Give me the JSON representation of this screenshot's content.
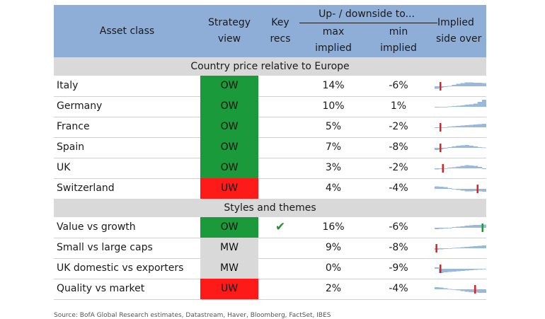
{
  "header": {
    "asset_class": "Asset class",
    "strategy_view_1": "Strategy",
    "strategy_view_2": "view",
    "key_recs_1": "Key",
    "key_recs_2": "recs",
    "updown": "Up- / downside to...",
    "max_1": "max",
    "max_2": "implied",
    "min_1": "min",
    "min_2": "implied",
    "implied_1": "Implied",
    "implied_2": "side over"
  },
  "sections": [
    {
      "title": "Country price relative to Europe",
      "rows": [
        {
          "name": "Italy",
          "view": "OW",
          "rec": "",
          "max": "14%",
          "min": "-6%",
          "spark": [
            -0.35,
            -0.2,
            -0.1,
            0.05,
            0.2,
            0.35,
            0.45,
            0.55,
            0.55,
            0.5,
            0.5,
            0.45
          ],
          "marker": 0.1,
          "marker_color": "#e02020"
        },
        {
          "name": "Germany",
          "view": "OW",
          "rec": "",
          "max": "10%",
          "min": "1%",
          "spark": [
            -0.1,
            -0.05,
            0,
            0.05,
            0.1,
            0.15,
            0.2,
            0.3,
            0.35,
            0.45,
            0.7,
            1.0
          ],
          "marker": null,
          "marker_color": ""
        },
        {
          "name": "France",
          "view": "OW",
          "rec": "",
          "max": "5%",
          "min": "-2%",
          "spark": [
            -0.1,
            -0.05,
            0,
            0.1,
            0.15,
            0.2,
            0.25,
            0.3,
            0.35,
            0.4,
            0.45,
            0.5
          ],
          "marker": 0.1,
          "marker_color": "#e02020"
        },
        {
          "name": "Spain",
          "view": "OW",
          "rec": "",
          "max": "7%",
          "min": "-8%",
          "spark": [
            -0.3,
            -0.2,
            -0.1,
            0.1,
            0.2,
            0.3,
            0.35,
            0.4,
            0.3,
            0.2,
            0.1,
            0.05
          ],
          "marker": 0.1,
          "marker_color": "#e02020"
        },
        {
          "name": "UK",
          "view": "OW",
          "rec": "",
          "max": "3%",
          "min": "-2%",
          "spark": [
            -0.15,
            -0.1,
            0,
            0.1,
            0.15,
            0.25,
            0.35,
            0.45,
            0.4,
            0.35,
            0.2,
            -0.1
          ],
          "marker": 0.15,
          "marker_color": "#e02020"
        },
        {
          "name": "Switzerland",
          "view": "UW",
          "rec": "",
          "max": "4%",
          "min": "-4%",
          "spark": [
            0.35,
            0.3,
            0.25,
            0.1,
            -0.05,
            -0.15,
            -0.25,
            -0.35,
            -0.35,
            -0.3,
            -0.35,
            -0.4
          ],
          "marker": 0.85,
          "marker_color": "#e02020"
        }
      ]
    },
    {
      "title": "Styles and themes",
      "rows": [
        {
          "name": "Value vs growth",
          "view": "OW",
          "rec": "✔",
          "max": "16%",
          "min": "-6%",
          "spark": [
            -0.2,
            -0.15,
            -0.1,
            0,
            0.1,
            0.15,
            0.2,
            0.3,
            0.35,
            0.4,
            0.4,
            0.45
          ],
          "marker": 0.95,
          "marker_color": "#1a9a3a"
        },
        {
          "name": "Small vs large caps",
          "view": "MW",
          "rec": "",
          "max": "9%",
          "min": "-8%",
          "spark": [
            -0.2,
            -0.15,
            -0.1,
            0,
            0.05,
            0.1,
            0.15,
            0.2,
            0.25,
            0.3,
            0.35,
            0.4
          ],
          "marker": 0.02,
          "marker_color": "#e02020"
        },
        {
          "name": "UK domestic vs exporters",
          "view": "MW",
          "rec": "",
          "max": "0%",
          "min": "-9%",
          "spark": [
            0.2,
            -0.6,
            -0.5,
            -0.45,
            -0.4,
            -0.35,
            -0.3,
            -0.25,
            -0.2,
            -0.15,
            -0.1,
            -0.05
          ],
          "marker": 0.1,
          "marker_color": "#e02020"
        },
        {
          "name": "Quality vs market",
          "view": "UW",
          "rec": "",
          "max": "2%",
          "min": "-4%",
          "spark": [
            0.3,
            0.25,
            0.15,
            0.05,
            -0.05,
            -0.15,
            -0.25,
            -0.35,
            -0.4,
            -0.45,
            -0.5,
            -0.5
          ],
          "marker": 0.8,
          "marker_color": "#e02020"
        }
      ]
    }
  ],
  "colors": {
    "header_bg": "#8eaed8",
    "section_bg": "#d9d9d9",
    "ow": "#1a9a3a",
    "uw": "#ff1a1a",
    "mw": "#d9d9d9",
    "spark": "#9ab8dc"
  },
  "footer": "Source: BofA Global Research estimates, Datastream, Haver, Bloomberg, FactSet, IBES"
}
